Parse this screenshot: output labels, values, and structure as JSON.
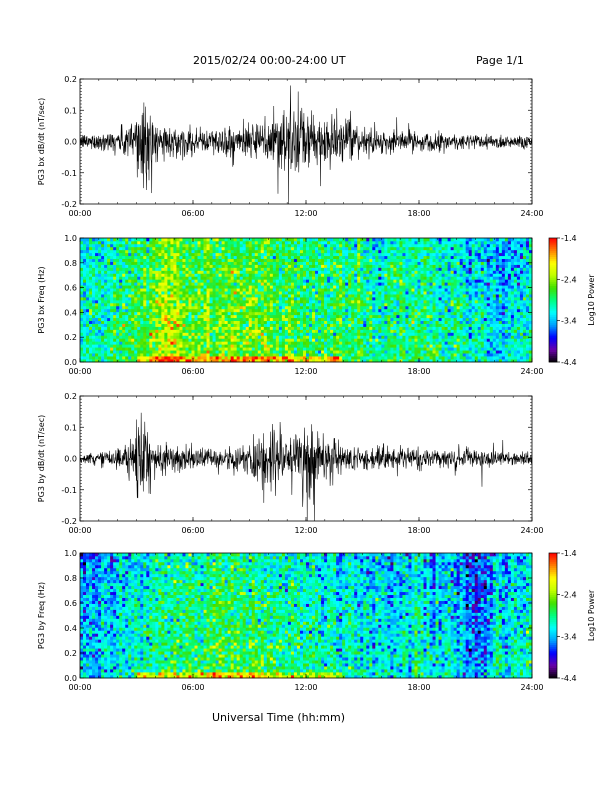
{
  "header": {
    "title": "2015/02/24  00:00-24:00 UT",
    "page": "Page 1/1"
  },
  "footer": {
    "xlabel": "Universal Time (hh:mm)"
  },
  "colors": {
    "trace": "#000000",
    "colormap": [
      "#000000",
      "#6a00a8",
      "#0000ff",
      "#00a0ff",
      "#00ffff",
      "#00ff80",
      "#40e000",
      "#c0ff00",
      "#ffff00",
      "#ff8000",
      "#ff0000"
    ]
  },
  "chart_data": [
    {
      "type": "line",
      "ylabel": "PG3 bx dB/dt (nT/sec)",
      "xticks": [
        "00:00",
        "06:00",
        "12:00",
        "18:00",
        "24:00"
      ],
      "xlim": [
        0,
        24
      ],
      "ylim": [
        -0.2,
        0.2
      ],
      "yticks": [
        "-0.2",
        "-0.1",
        "0.0",
        "0.1",
        "0.2"
      ],
      "envelope_hours": [
        0,
        2,
        2.8,
        3.3,
        3.6,
        4,
        5,
        6,
        7,
        8,
        9,
        9.5,
        10,
        10.5,
        11,
        11.5,
        12,
        12.5,
        13,
        14,
        15,
        16,
        18,
        20,
        22,
        24
      ],
      "envelope_amplitude": [
        0.025,
        0.04,
        0.08,
        0.22,
        0.15,
        0.06,
        0.05,
        0.045,
        0.045,
        0.06,
        0.05,
        0.06,
        0.1,
        0.13,
        0.16,
        0.12,
        0.11,
        0.09,
        0.1,
        0.07,
        0.05,
        0.04,
        0.035,
        0.03,
        0.025,
        0.025
      ]
    },
    {
      "type": "heatmap",
      "ylabel": "PG3 bx Freq (Hz)",
      "xticks": [
        "00:00",
        "06:00",
        "12:00",
        "18:00",
        "24:00"
      ],
      "xlim": [
        0,
        24
      ],
      "ylim": [
        0,
        1
      ],
      "yticks": [
        "0.0",
        "0.2",
        "0.4",
        "0.6",
        "0.8",
        "1.0"
      ],
      "colorbar": {
        "label": "Log10 Power",
        "ticks": [
          "-1.4",
          "-2.4",
          "-3.4",
          "-4.4"
        ],
        "range": [
          -4.4,
          -1.4
        ]
      },
      "activity_hours": [
        0,
        1.5,
        3,
        4.5,
        6,
        7.5,
        9,
        10.5,
        12,
        13.5,
        15,
        16.5,
        18,
        19.5,
        21,
        22.5,
        24
      ],
      "activity_log_power": [
        -3.0,
        -2.9,
        -2.6,
        -2.3,
        -2.4,
        -2.5,
        -2.5,
        -2.6,
        -2.7,
        -2.7,
        -2.8,
        -2.8,
        -2.8,
        -2.9,
        -3.0,
        -3.2,
        -3.0
      ]
    },
    {
      "type": "line",
      "ylabel": "PG3 by dB/dt (nT/sec)",
      "xticks": [
        "00:00",
        "06:00",
        "12:00",
        "18:00",
        "24:00"
      ],
      "xlim": [
        0,
        24
      ],
      "ylim": [
        -0.2,
        0.2
      ],
      "yticks": [
        "-0.2",
        "-0.1",
        "0.0",
        "0.1",
        "0.2"
      ],
      "envelope_hours": [
        0,
        2,
        2.8,
        3.3,
        3.6,
        4,
        5,
        6,
        7,
        8,
        9,
        9.5,
        10,
        10.5,
        11,
        11.5,
        12,
        12.5,
        13,
        14,
        15,
        16,
        18,
        20,
        22,
        24
      ],
      "envelope_amplitude": [
        0.015,
        0.03,
        0.07,
        0.2,
        0.1,
        0.05,
        0.05,
        0.04,
        0.035,
        0.04,
        0.05,
        0.1,
        0.14,
        0.1,
        0.07,
        0.12,
        0.2,
        0.14,
        0.08,
        0.05,
        0.045,
        0.04,
        0.03,
        0.035,
        0.03,
        0.02
      ]
    },
    {
      "type": "heatmap",
      "ylabel": "PG3 by Freq (Hz)",
      "xticks": [
        "00:00",
        "06:00",
        "12:00",
        "18:00",
        "24:00"
      ],
      "xlim": [
        0,
        24
      ],
      "ylim": [
        0,
        1
      ],
      "yticks": [
        "0.0",
        "0.2",
        "0.4",
        "0.6",
        "0.8",
        "1.0"
      ],
      "colorbar": {
        "label": "Log10 Power",
        "ticks": [
          "-1.4",
          "-2.4",
          "-3.4",
          "-4.4"
        ],
        "range": [
          -4.4,
          -1.4
        ]
      },
      "activity_hours": [
        0,
        1.5,
        3,
        4.5,
        6,
        7.5,
        9,
        10.5,
        12,
        13.5,
        15,
        16.5,
        18,
        19.5,
        21,
        22.5,
        24
      ],
      "activity_log_power": [
        -3.4,
        -3.2,
        -3.0,
        -2.8,
        -2.7,
        -2.7,
        -2.7,
        -2.8,
        -2.9,
        -3.0,
        -3.0,
        -3.3,
        -3.0,
        -3.2,
        -3.5,
        -3.1,
        -3.0
      ]
    }
  ]
}
